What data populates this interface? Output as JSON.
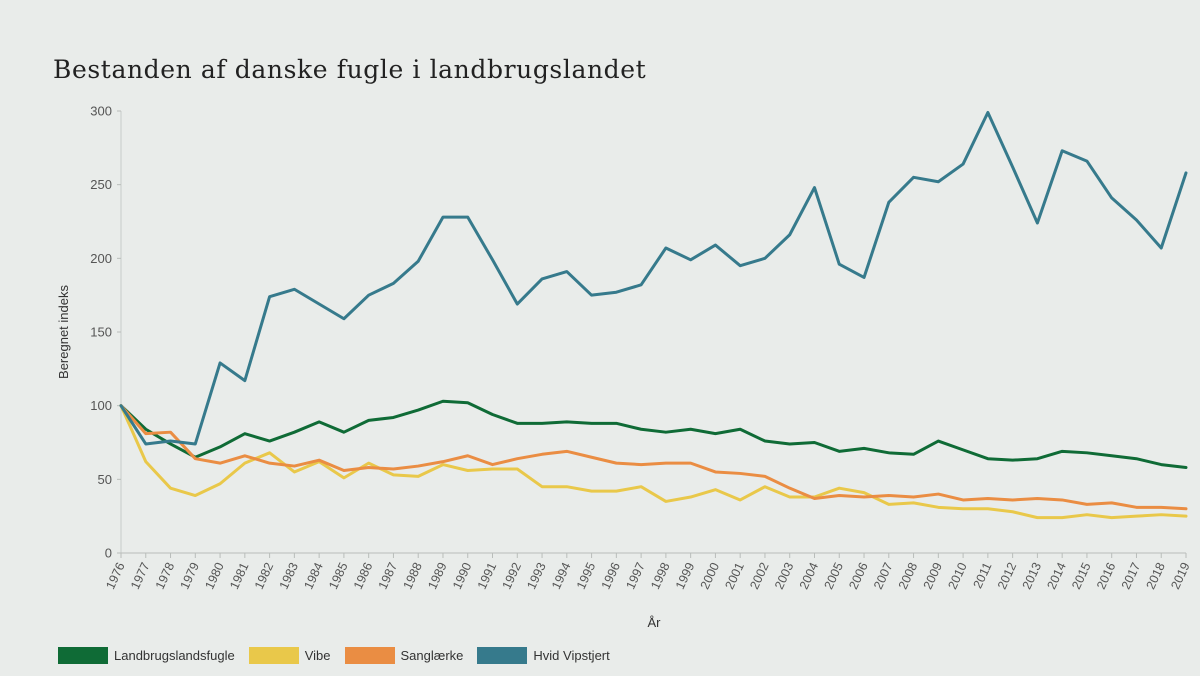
{
  "chart_data": {
    "type": "line",
    "title": "Bestanden af danske fugle i landbrugslandet",
    "xlabel": "År",
    "ylabel": "Beregnet indeks",
    "ylim": [
      0,
      300
    ],
    "yticks": [
      0,
      50,
      100,
      150,
      200,
      250,
      300
    ],
    "grid": false,
    "legend_position": "bottom-left",
    "x": [
      1976,
      1977,
      1978,
      1979,
      1980,
      1981,
      1982,
      1983,
      1984,
      1985,
      1986,
      1987,
      1988,
      1989,
      1990,
      1991,
      1992,
      1993,
      1994,
      1995,
      1996,
      1997,
      1998,
      1999,
      2000,
      2001,
      2002,
      2003,
      2004,
      2005,
      2006,
      2007,
      2008,
      2009,
      2010,
      2011,
      2012,
      2013,
      2014,
      2015,
      2016,
      2017,
      2018,
      2019
    ],
    "series": [
      {
        "name": "Landbrugslandsfugle",
        "color": "#0f6b36",
        "values": [
          100,
          84,
          74,
          65,
          72,
          81,
          76,
          82,
          89,
          82,
          90,
          92,
          97,
          103,
          102,
          94,
          88,
          88,
          89,
          88,
          88,
          84,
          82,
          84,
          81,
          84,
          76,
          74,
          75,
          69,
          71,
          68,
          67,
          76,
          70,
          64,
          63,
          64,
          69,
          68,
          66,
          64,
          60,
          58
        ]
      },
      {
        "name": "Vibe",
        "color": "#e9c84a",
        "values": [
          100,
          62,
          44,
          39,
          47,
          61,
          68,
          55,
          62,
          51,
          61,
          53,
          52,
          60,
          56,
          57,
          57,
          45,
          45,
          42,
          42,
          45,
          35,
          38,
          43,
          36,
          45,
          38,
          38,
          44,
          41,
          33,
          34,
          31,
          30,
          30,
          28,
          24,
          24,
          26,
          24,
          25,
          26,
          25
        ]
      },
      {
        "name": "Sanglærke",
        "color": "#ea8d43",
        "values": [
          100,
          81,
          82,
          64,
          61,
          66,
          61,
          59,
          63,
          56,
          58,
          57,
          59,
          62,
          66,
          60,
          64,
          67,
          69,
          65,
          61,
          60,
          61,
          61,
          55,
          54,
          52,
          44,
          37,
          39,
          38,
          39,
          38,
          40,
          36,
          37,
          36,
          37,
          36,
          33,
          34,
          31,
          31,
          30
        ]
      },
      {
        "name": "Hvid Vipstjert",
        "color": "#367a8c",
        "values": [
          100,
          74,
          76,
          74,
          129,
          117,
          174,
          179,
          169,
          159,
          175,
          183,
          198,
          228,
          228,
          199,
          169,
          186,
          191,
          175,
          177,
          182,
          207,
          199,
          209,
          195,
          200,
          216,
          248,
          196,
          187,
          238,
          255,
          252,
          264,
          299,
          262,
          224,
          273,
          266,
          241,
          226,
          207,
          258
        ]
      }
    ]
  }
}
